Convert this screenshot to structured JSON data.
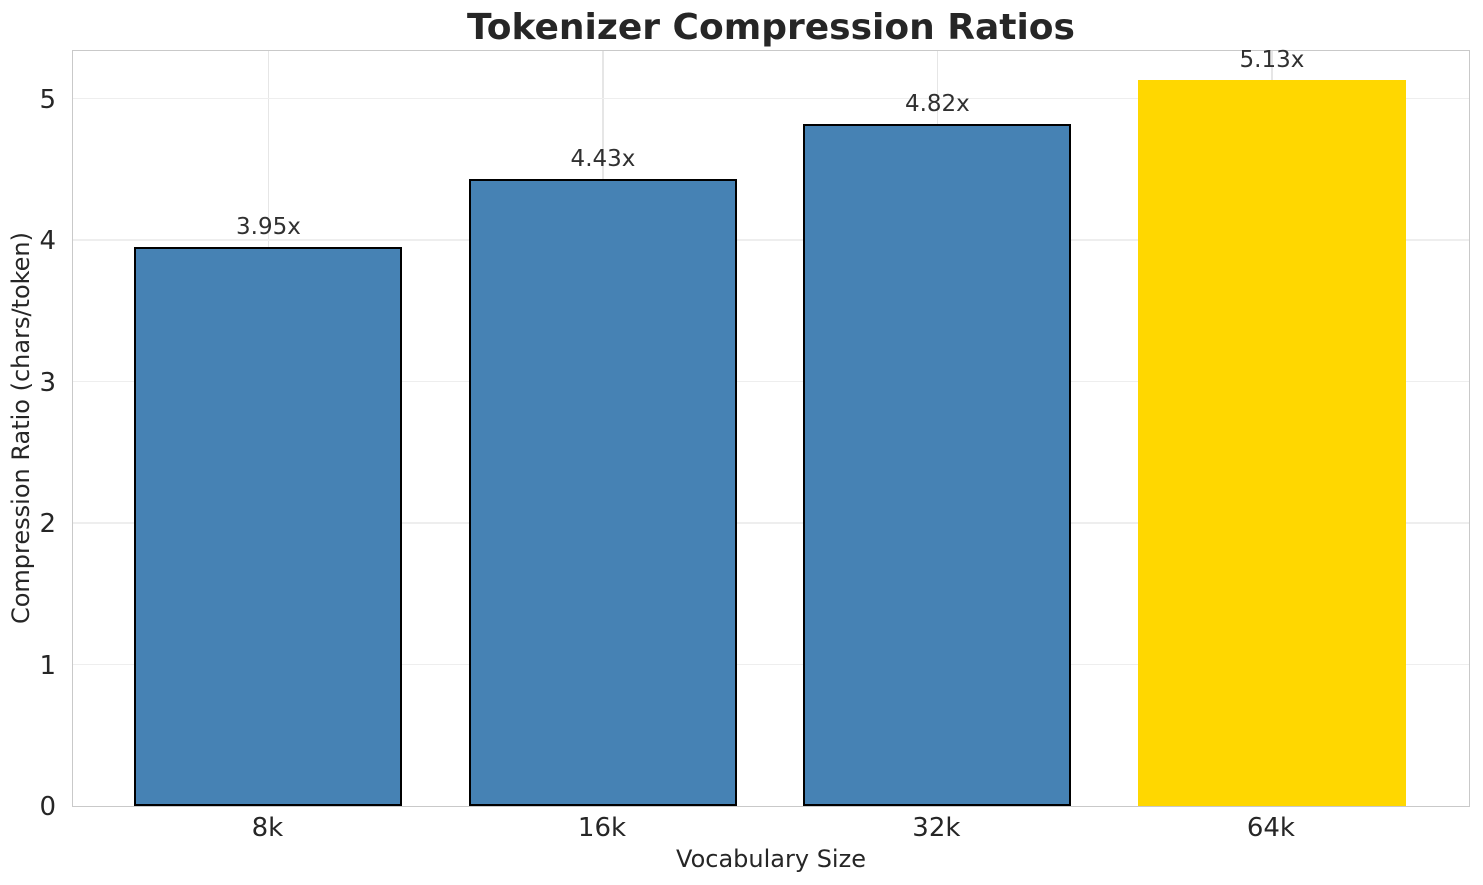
{
  "chart_data": {
    "type": "bar",
    "title": "Tokenizer Compression Ratios",
    "xlabel": "Vocabulary Size",
    "ylabel": "Compression Ratio (chars/token)",
    "categories": [
      "8k",
      "16k",
      "32k",
      "64k"
    ],
    "values": [
      3.95,
      4.43,
      4.82,
      5.13
    ],
    "value_labels": [
      "3.95x",
      "4.43x",
      "4.82x",
      "5.13x"
    ],
    "bar_colors": [
      "#4682b4",
      "#4682b4",
      "#4682b4",
      "#ffd700"
    ],
    "bar_edge_colors": [
      "#000000",
      "#000000",
      "#000000",
      null
    ],
    "yticks": [
      0,
      1,
      2,
      3,
      4,
      5
    ],
    "ylim": [
      0,
      5.35
    ],
    "grid": true,
    "legend_position": null
  },
  "colors": {
    "bar_default": "#4682b4",
    "bar_highlight": "#ffd700",
    "bar_edge": "#000000",
    "grid_horizontal": "#eeeeee",
    "grid_vertical": "#e6e6e6",
    "spine": "#c9c9c9",
    "text": "#262626",
    "background": "#ffffff"
  }
}
